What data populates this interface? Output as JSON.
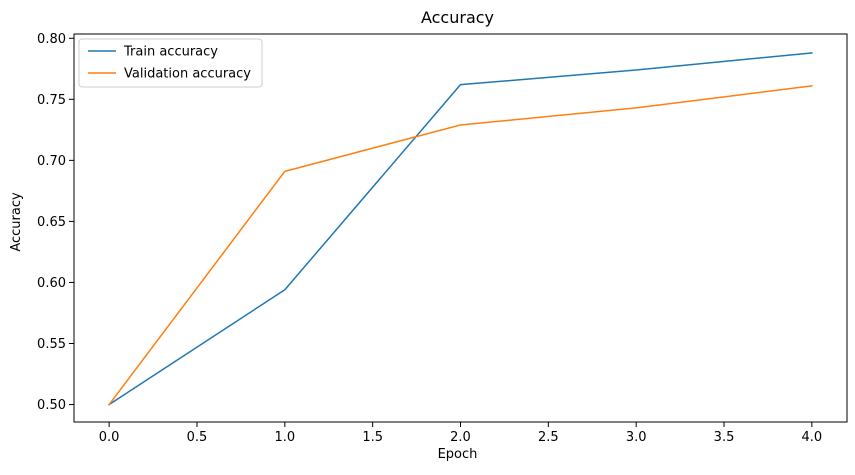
{
  "chart_data": {
    "type": "line",
    "title": "Accuracy",
    "xlabel": "Epoch",
    "ylabel": "Accuracy",
    "x": [
      0,
      1,
      2,
      3,
      4
    ],
    "xlim": [
      -0.2,
      4.2
    ],
    "ylim": [
      0.4857,
      0.8035
    ],
    "xticks": [
      0.0,
      0.5,
      1.0,
      1.5,
      2.0,
      2.5,
      3.0,
      3.5,
      4.0
    ],
    "xtick_labels": [
      "0.0",
      "0.5",
      "1.0",
      "1.5",
      "2.0",
      "2.5",
      "3.0",
      "3.5",
      "4.0"
    ],
    "yticks": [
      0.5,
      0.55,
      0.6,
      0.65,
      0.7,
      0.75,
      0.8
    ],
    "ytick_labels": [
      "0.50",
      "0.55",
      "0.60",
      "0.65",
      "0.70",
      "0.75",
      "0.80"
    ],
    "grid": false,
    "legend_position": "top-left",
    "series": [
      {
        "name": "Train accuracy",
        "color": "#1f77b4",
        "values": [
          0.5,
          0.594,
          0.762,
          0.774,
          0.788
        ]
      },
      {
        "name": "Validation accuracy",
        "color": "#ff7f0e",
        "values": [
          0.5,
          0.691,
          0.729,
          0.743,
          0.761
        ]
      }
    ]
  }
}
